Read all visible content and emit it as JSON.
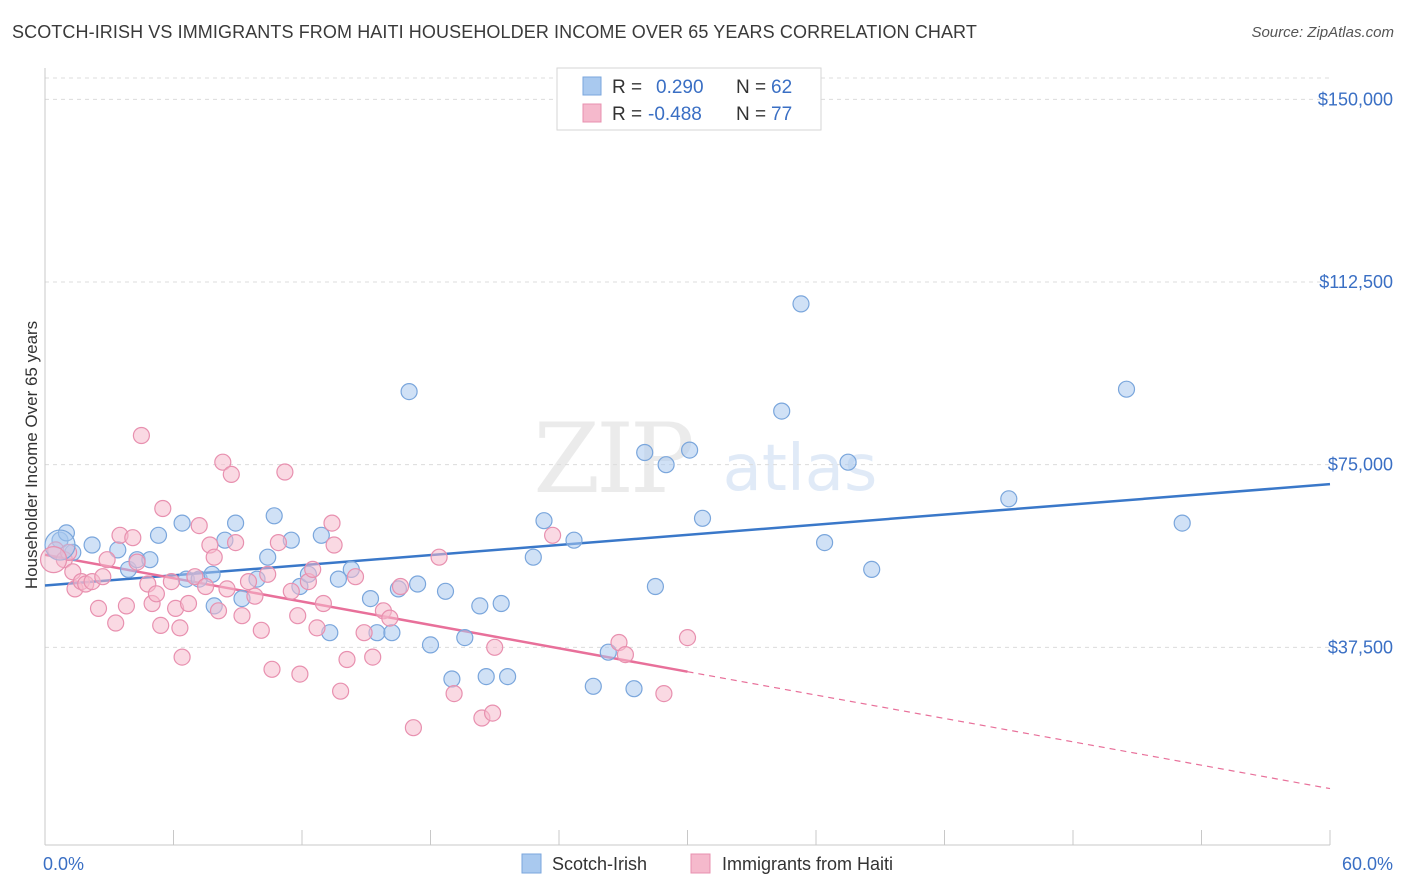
{
  "title": "SCOTCH-IRISH VS IMMIGRANTS FROM HAITI HOUSEHOLDER INCOME OVER 65 YEARS CORRELATION CHART",
  "source": "Source: ZipAtlas.com",
  "watermark": {
    "zip": "ZIP",
    "atlas": "atlas"
  },
  "colors": {
    "blue": "#3a78c9",
    "blue_fill": "#a9c9ef",
    "pink": "#e8709a",
    "pink_fill": "#f5b9cc",
    "axis_text": "#3a6fc4",
    "grid": "#dddddd"
  },
  "chart_data": {
    "type": "scatter",
    "title": "SCOTCH-IRISH VS IMMIGRANTS FROM HAITI HOUSEHOLDER INCOME OVER 65 YEARS CORRELATION CHART",
    "ylabel": "Householder Income Over 65 years",
    "xlim": [
      0,
      60
    ],
    "ylim": [
      0,
      155000
    ],
    "x_tick_labels": [
      "0.0%",
      "60.0%"
    ],
    "y_ticks": [
      37500,
      75000,
      112500,
      150000
    ],
    "y_tick_labels": [
      "$37,500",
      "$75,000",
      "$112,500",
      "$150,000"
    ],
    "grid": "horizontal dashed",
    "legend_position": "top-center",
    "stats": [
      {
        "r_label": "R =",
        "r_value": "0.290",
        "n_label": "N =",
        "n_value": "62"
      },
      {
        "r_label": "R =",
        "r_value": "-0.488",
        "n_label": "N =",
        "n_value": "77"
      }
    ],
    "series": [
      {
        "name": "Scotch-Irish",
        "color": "#3a78c9",
        "trend": {
          "x": [
            0,
            60
          ],
          "y": [
            50200,
            71000
          ]
        },
        "points": [
          [
            0.7,
            59500
          ],
          [
            1.0,
            61000
          ],
          [
            1.3,
            57000
          ],
          [
            2.2,
            58500
          ],
          [
            3.4,
            57500
          ],
          [
            3.9,
            53500
          ],
          [
            4.3,
            55500
          ],
          [
            4.9,
            55500
          ],
          [
            5.3,
            60500
          ],
          [
            6.6,
            51500
          ],
          [
            6.4,
            63000
          ],
          [
            7.2,
            51500
          ],
          [
            7.8,
            52500
          ],
          [
            7.9,
            46000
          ],
          [
            8.4,
            59500
          ],
          [
            8.9,
            63000
          ],
          [
            9.2,
            47500
          ],
          [
            9.9,
            51500
          ],
          [
            10.4,
            56000
          ],
          [
            10.7,
            64500
          ],
          [
            11.5,
            59500
          ],
          [
            11.9,
            50000
          ],
          [
            12.3,
            52500
          ],
          [
            12.9,
            60500
          ],
          [
            13.3,
            40500
          ],
          [
            13.7,
            51500
          ],
          [
            14.3,
            53500
          ],
          [
            15.2,
            47500
          ],
          [
            15.5,
            40500
          ],
          [
            16.2,
            40500
          ],
          [
            16.5,
            49500
          ],
          [
            17.0,
            90000
          ],
          [
            17.4,
            50500
          ],
          [
            18.0,
            38000
          ],
          [
            18.7,
            49000
          ],
          [
            19.0,
            31000
          ],
          [
            19.6,
            39500
          ],
          [
            20.3,
            46000
          ],
          [
            20.6,
            31500
          ],
          [
            21.3,
            46500
          ],
          [
            21.6,
            31500
          ],
          [
            22.8,
            56000
          ],
          [
            23.3,
            63500
          ],
          [
            24.7,
            59500
          ],
          [
            25.6,
            29500
          ],
          [
            26.3,
            36500
          ],
          [
            27.5,
            29000
          ],
          [
            28.0,
            77500
          ],
          [
            28.5,
            50000
          ],
          [
            29.0,
            75000
          ],
          [
            30.1,
            78000
          ],
          [
            30.7,
            64000
          ],
          [
            34.4,
            86000
          ],
          [
            35.3,
            108000
          ],
          [
            36.4,
            59000
          ],
          [
            37.5,
            75500
          ],
          [
            38.6,
            53500
          ],
          [
            45.0,
            68000
          ],
          [
            50.5,
            90500
          ],
          [
            53.1,
            63000
          ]
        ]
      },
      {
        "name": "Immigrants from Haiti",
        "color": "#e8709a",
        "trend": {
          "x": [
            0,
            30
          ],
          "y": [
            56500,
            32500
          ]
        },
        "trend_ext": {
          "x": [
            30,
            60
          ],
          "y": [
            32500,
            8500
          ]
        },
        "points": [
          [
            0.5,
            57500
          ],
          [
            0.9,
            55500
          ],
          [
            1.1,
            57000
          ],
          [
            1.3,
            53000
          ],
          [
            1.4,
            49500
          ],
          [
            1.7,
            51000
          ],
          [
            1.9,
            50500
          ],
          [
            2.2,
            51000
          ],
          [
            2.5,
            45500
          ],
          [
            2.7,
            52000
          ],
          [
            2.9,
            55500
          ],
          [
            3.3,
            42500
          ],
          [
            3.5,
            60500
          ],
          [
            3.8,
            46000
          ],
          [
            4.1,
            60000
          ],
          [
            4.3,
            55000
          ],
          [
            4.5,
            81000
          ],
          [
            4.8,
            50500
          ],
          [
            5.0,
            46500
          ],
          [
            5.2,
            48500
          ],
          [
            5.4,
            42000
          ],
          [
            5.5,
            66000
          ],
          [
            5.9,
            51000
          ],
          [
            6.1,
            45500
          ],
          [
            6.3,
            41500
          ],
          [
            6.4,
            35500
          ],
          [
            6.7,
            46500
          ],
          [
            7.0,
            52000
          ],
          [
            7.2,
            62500
          ],
          [
            7.5,
            50000
          ],
          [
            7.7,
            58500
          ],
          [
            7.9,
            56000
          ],
          [
            8.1,
            45000
          ],
          [
            8.3,
            75500
          ],
          [
            8.5,
            49500
          ],
          [
            8.7,
            73000
          ],
          [
            8.9,
            59000
          ],
          [
            9.2,
            44000
          ],
          [
            9.5,
            51000
          ],
          [
            9.8,
            48000
          ],
          [
            10.1,
            41000
          ],
          [
            10.4,
            52500
          ],
          [
            10.6,
            33000
          ],
          [
            10.9,
            59000
          ],
          [
            11.2,
            73500
          ],
          [
            11.5,
            49000
          ],
          [
            11.8,
            44000
          ],
          [
            11.9,
            32000
          ],
          [
            12.3,
            51000
          ],
          [
            12.5,
            53500
          ],
          [
            12.7,
            41500
          ],
          [
            13.0,
            46500
          ],
          [
            13.4,
            63000
          ],
          [
            13.5,
            58500
          ],
          [
            13.8,
            28500
          ],
          [
            14.1,
            35000
          ],
          [
            14.5,
            52000
          ],
          [
            14.9,
            40500
          ],
          [
            15.3,
            35500
          ],
          [
            15.8,
            45000
          ],
          [
            16.1,
            43500
          ],
          [
            16.6,
            50000
          ],
          [
            17.2,
            21000
          ],
          [
            18.4,
            56000
          ],
          [
            19.1,
            28000
          ],
          [
            20.4,
            23000
          ],
          [
            20.9,
            24000
          ],
          [
            21.0,
            37500
          ],
          [
            23.7,
            60500
          ],
          [
            26.8,
            38500
          ],
          [
            27.1,
            36000
          ],
          [
            28.9,
            28000
          ],
          [
            30.0,
            39500
          ]
        ]
      }
    ]
  }
}
